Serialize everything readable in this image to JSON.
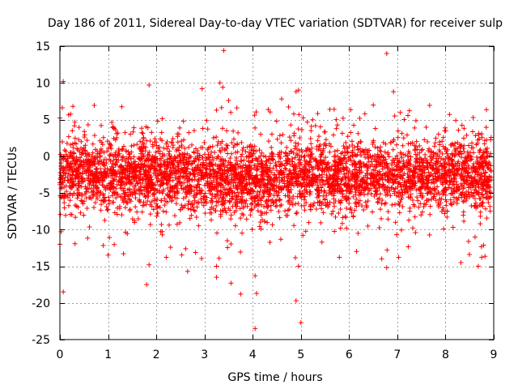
{
  "chart_data": {
    "type": "scatter",
    "title": "Day 186 of 2011, Sidereal Day-to-day VTEC variation (SDTVAR) for receiver sulp",
    "xlabel": "GPS time / hours",
    "ylabel": "SDTVAR / TECUs",
    "xlim": [
      0,
      9
    ],
    "ylim": [
      -25,
      15
    ],
    "xticks": [
      0,
      1,
      2,
      3,
      4,
      5,
      6,
      7,
      8,
      9
    ],
    "xtick_labels": [
      "0",
      "1",
      "2",
      "3",
      "4",
      "5",
      "6",
      "7",
      "8",
      "9"
    ],
    "yticks": [
      15,
      10,
      5,
      0,
      -5,
      -10,
      -15,
      -20,
      -25
    ],
    "ytick_labels": [
      "15",
      "10",
      "5",
      "0",
      "-5",
      "-10",
      "-15",
      "-20",
      "-25"
    ],
    "grid": true,
    "marker": "+",
    "series": [
      {
        "name": "SDTVAR",
        "color": "#ff0000",
        "points_note": "dense cloud of ~thousands of points roughly between -10 and +4 TECU, centred near -3",
        "outliers": [
          {
            "x": 0.07,
            "y": 10.2
          },
          {
            "x": 0.05,
            "y": 6.6
          },
          {
            "x": 0.0,
            "y": -12.0
          },
          {
            "x": 0.07,
            "y": -18.5
          },
          {
            "x": 0.27,
            "y": 6.8
          },
          {
            "x": 1.85,
            "y": 9.7
          },
          {
            "x": 1.8,
            "y": -17.5
          },
          {
            "x": 1.85,
            "y": -14.8
          },
          {
            "x": 1.32,
            "y": -13.3
          },
          {
            "x": 2.65,
            "y": -15.7
          },
          {
            "x": 2.95,
            "y": 9.2
          },
          {
            "x": 3.25,
            "y": -16.5
          },
          {
            "x": 3.25,
            "y": -15.0
          },
          {
            "x": 3.32,
            "y": 10.0
          },
          {
            "x": 3.38,
            "y": 9.4
          },
          {
            "x": 3.4,
            "y": 14.4
          },
          {
            "x": 3.5,
            "y": 7.6
          },
          {
            "x": 3.55,
            "y": -17.3
          },
          {
            "x": 3.75,
            "y": -18.8
          },
          {
            "x": 4.05,
            "y": -16.3
          },
          {
            "x": 4.08,
            "y": -18.7
          },
          {
            "x": 4.05,
            "y": -23.5
          },
          {
            "x": 4.6,
            "y": 7.8
          },
          {
            "x": 4.9,
            "y": 8.8
          },
          {
            "x": 4.95,
            "y": 9.0
          },
          {
            "x": 4.95,
            "y": -15.0
          },
          {
            "x": 4.9,
            "y": -19.7
          },
          {
            "x": 5.0,
            "y": -22.7
          },
          {
            "x": 5.6,
            "y": 6.4
          },
          {
            "x": 6.78,
            "y": 14.0
          },
          {
            "x": 6.92,
            "y": 8.8
          },
          {
            "x": 6.78,
            "y": -15.2
          },
          {
            "x": 8.32,
            "y": -14.5
          },
          {
            "x": 8.68,
            "y": -15.0
          },
          {
            "x": 8.75,
            "y": -13.8
          },
          {
            "x": 7.25,
            "y": 6.2
          }
        ]
      }
    ]
  }
}
